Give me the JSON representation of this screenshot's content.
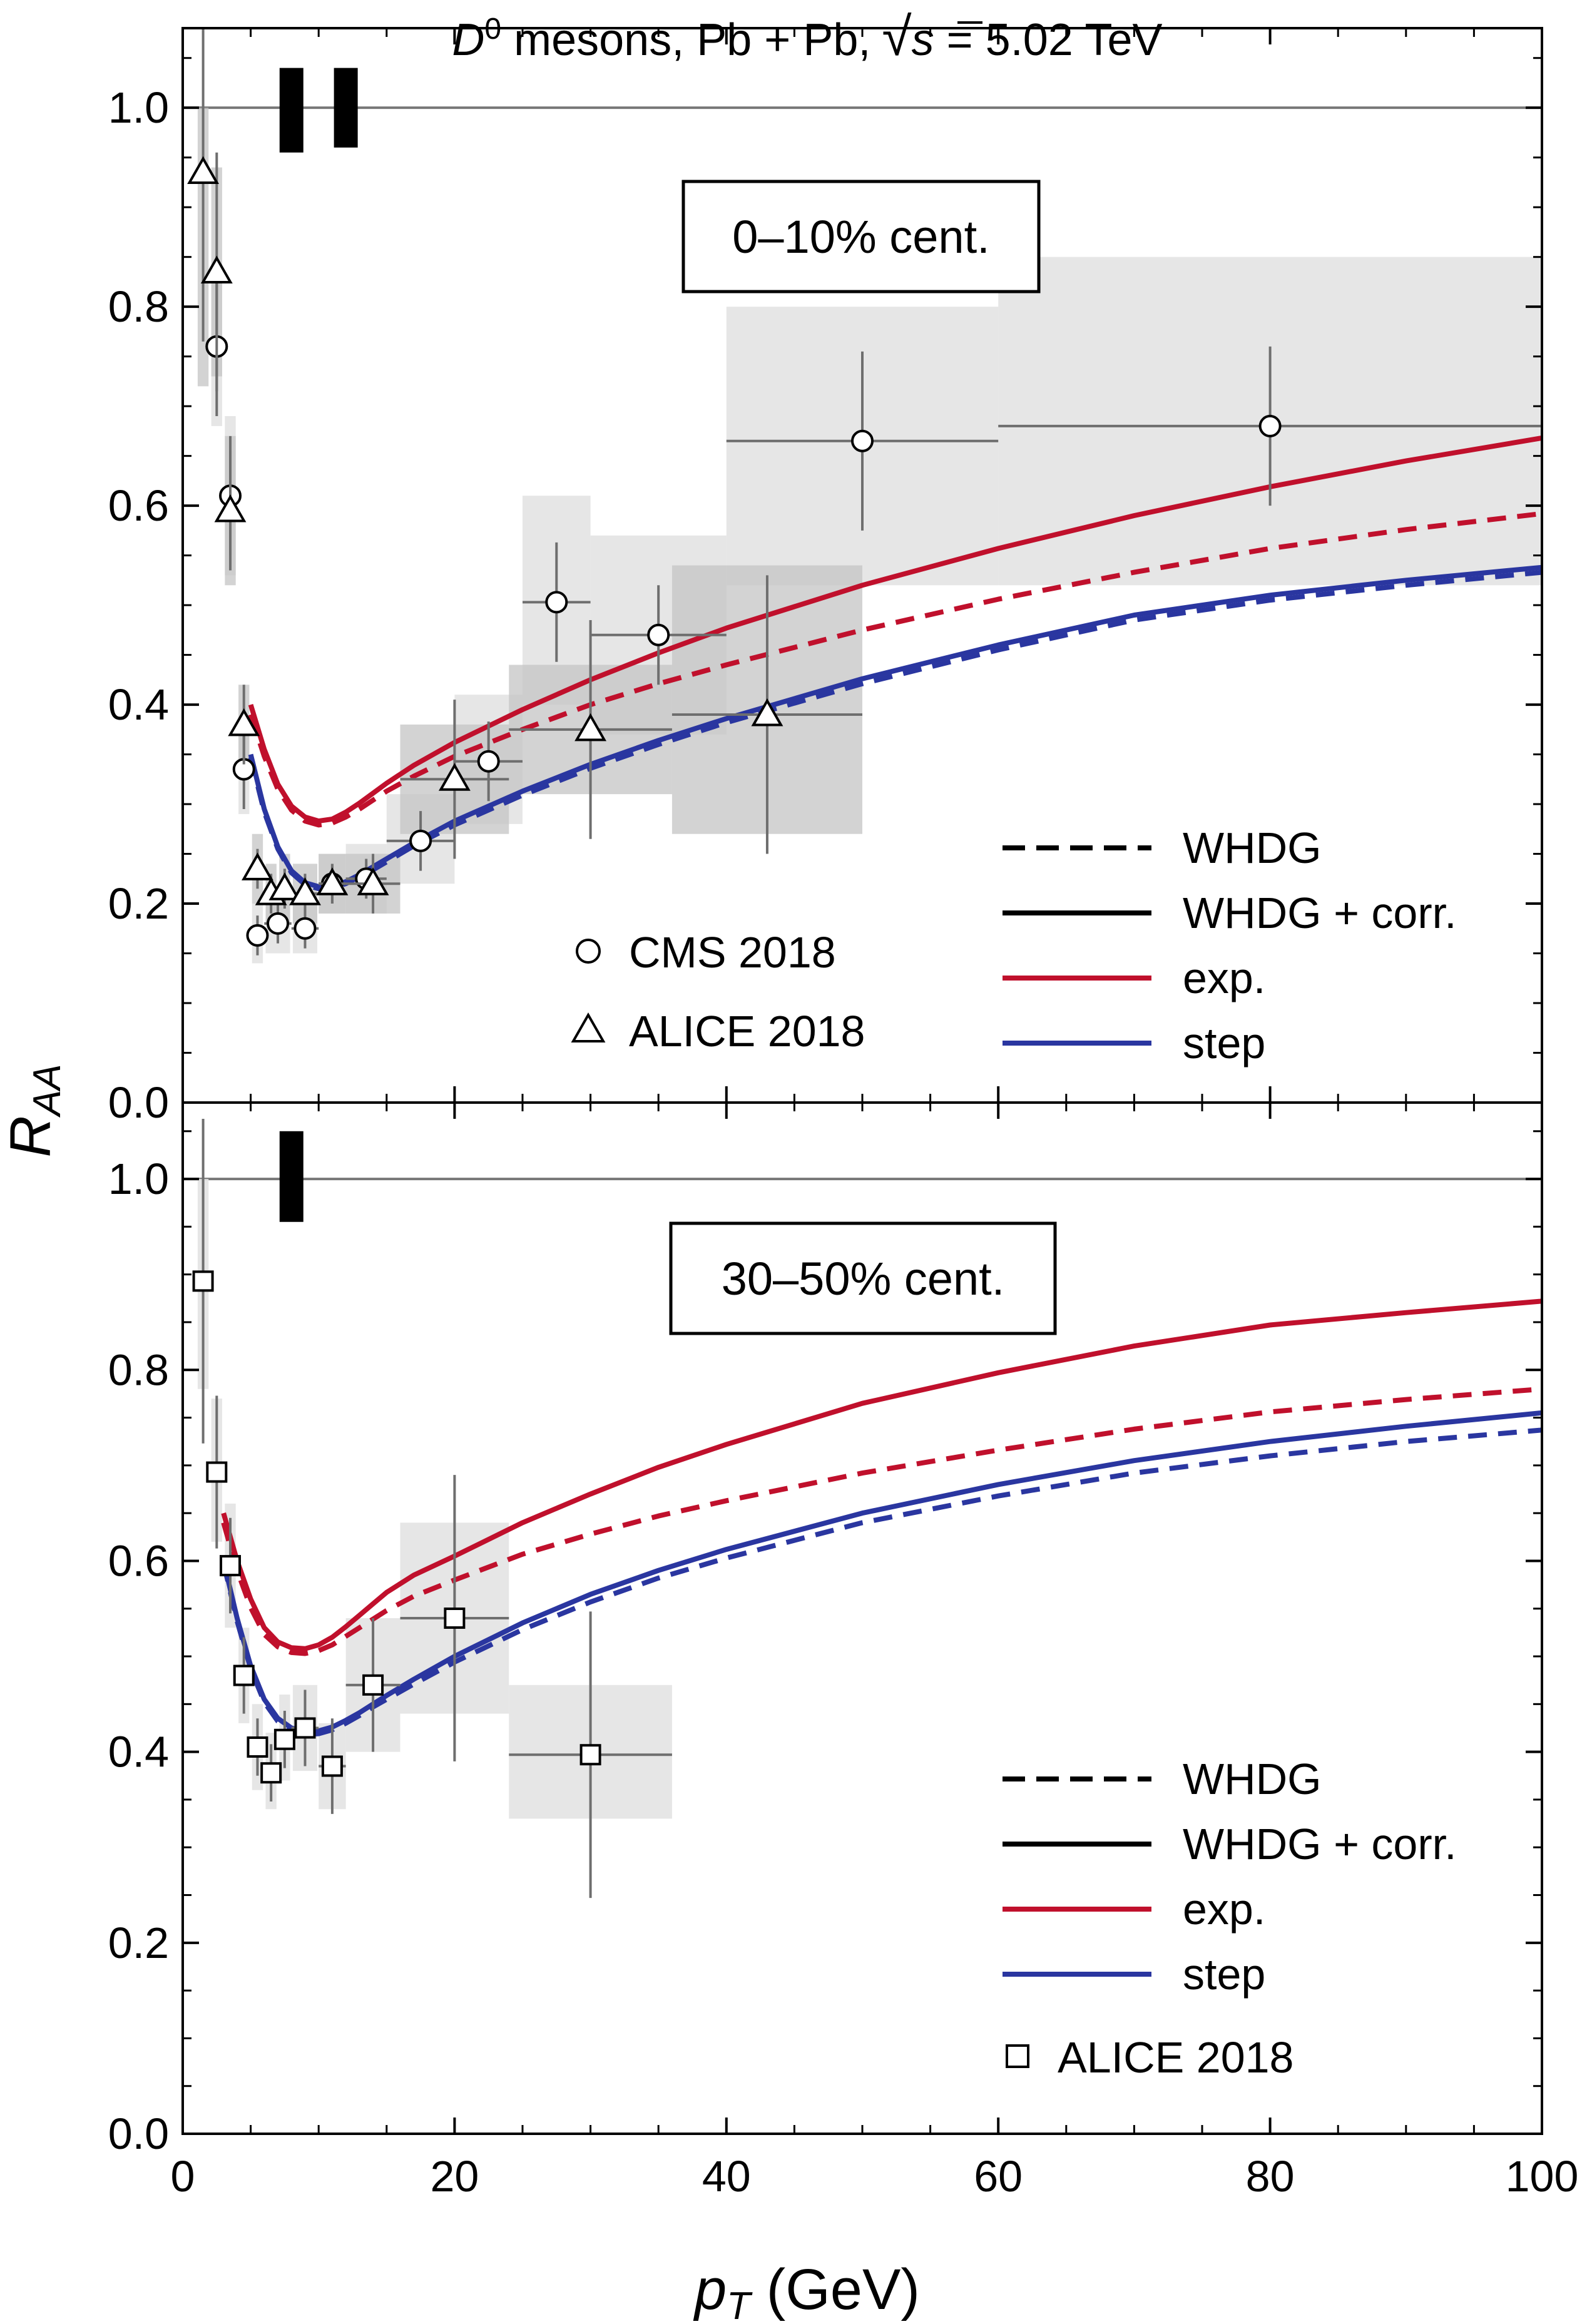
{
  "figure_title": {
    "particle": "D",
    "particle_sup": "0",
    "rest": " mesons, Pb + Pb,",
    "sqrt_symbol": "√",
    "s_var": "s",
    "energy": " = 5.02 TeV"
  },
  "x_axis_label": {
    "var": "p",
    "sub": "T",
    "unit": " (GeV)"
  },
  "y_axis_label": {
    "var": "R",
    "sub": "AA"
  },
  "colors": {
    "exp": "#c0102c",
    "step": "#2a36a0",
    "errbar": "#6e6e6e",
    "band_light": "#e3e3e3",
    "band_dark": "#c4c4c4"
  },
  "chart_data": [
    {
      "type": "line",
      "panel": "top",
      "centrality_label": "0–10% cent.",
      "xlim": [
        0,
        100
      ],
      "ylim": [
        0,
        1.08
      ],
      "x_ticks": [
        0,
        20,
        40,
        60,
        80,
        100
      ],
      "x_tick_labels": [
        "",
        "",
        "",
        "",
        "",
        ""
      ],
      "y_ticks": [
        0.0,
        0.2,
        0.4,
        0.6,
        0.8,
        1.0
      ],
      "y_tick_labels": [
        "0.0",
        "0.2",
        "0.4",
        "0.6",
        "0.8",
        "1.0"
      ],
      "reference_line": 1.0,
      "normalization_uncertainty": [
        {
          "x": 8,
          "ylow": 0.955,
          "yhigh": 1.04
        },
        {
          "x": 12,
          "ylow": 0.96,
          "yhigh": 1.04
        }
      ],
      "legend": {
        "line_styles": [
          {
            "label": "WHDG",
            "style": "dashed"
          },
          {
            "label": "WHDG + corr.",
            "style": "solid"
          },
          {
            "label": "exp.",
            "style": "solid",
            "color": "exp"
          },
          {
            "label": "step",
            "style": "solid",
            "color": "step"
          }
        ],
        "markers": [
          {
            "label": "CMS 2018",
            "marker": "circle"
          },
          {
            "label": "ALICE 2018",
            "marker": "triangle"
          }
        ]
      },
      "series": [
        {
          "name": "exp. (WHDG + corr.)",
          "color": "exp",
          "style": "solid",
          "x": [
            5,
            6,
            7,
            8,
            9,
            10,
            11,
            12,
            13,
            14,
            15,
            17,
            20,
            25,
            30,
            35,
            40,
            50,
            60,
            70,
            80,
            90,
            100
          ],
          "y": [
            0.4,
            0.355,
            0.32,
            0.298,
            0.287,
            0.283,
            0.285,
            0.292,
            0.301,
            0.311,
            0.321,
            0.339,
            0.362,
            0.395,
            0.425,
            0.452,
            0.477,
            0.52,
            0.557,
            0.59,
            0.619,
            0.645,
            0.668
          ]
        },
        {
          "name": "exp. (WHDG)",
          "color": "exp",
          "style": "dashed",
          "x": [
            5,
            6,
            7,
            8,
            9,
            10,
            11,
            12,
            13,
            14,
            15,
            17,
            20,
            25,
            30,
            35,
            40,
            50,
            60,
            70,
            80,
            90,
            100
          ],
          "y": [
            0.39,
            0.348,
            0.315,
            0.294,
            0.283,
            0.279,
            0.281,
            0.287,
            0.295,
            0.304,
            0.313,
            0.328,
            0.348,
            0.375,
            0.4,
            0.421,
            0.44,
            0.475,
            0.506,
            0.533,
            0.557,
            0.576,
            0.592
          ]
        },
        {
          "name": "step (WHDG + corr.)",
          "color": "step",
          "style": "solid",
          "x": [
            5,
            6,
            7,
            8,
            9,
            10,
            11,
            12,
            13,
            14,
            15,
            17,
            20,
            25,
            30,
            35,
            40,
            50,
            60,
            70,
            80,
            90,
            100
          ],
          "y": [
            0.35,
            0.295,
            0.257,
            0.233,
            0.221,
            0.217,
            0.218,
            0.222,
            0.229,
            0.237,
            0.245,
            0.261,
            0.283,
            0.313,
            0.34,
            0.364,
            0.386,
            0.426,
            0.46,
            0.49,
            0.51,
            0.525,
            0.538
          ]
        },
        {
          "name": "step (WHDG)",
          "color": "step",
          "style": "dashed",
          "x": [
            5,
            6,
            7,
            8,
            9,
            10,
            11,
            12,
            13,
            14,
            15,
            17,
            20,
            25,
            30,
            35,
            40,
            50,
            60,
            70,
            80,
            90,
            100
          ],
          "y": [
            0.347,
            0.292,
            0.255,
            0.231,
            0.219,
            0.215,
            0.216,
            0.22,
            0.227,
            0.234,
            0.242,
            0.258,
            0.279,
            0.309,
            0.336,
            0.36,
            0.382,
            0.421,
            0.455,
            0.485,
            0.505,
            0.52,
            0.533
          ]
        },
        {
          "name": "CMS 2018",
          "marker": "circle",
          "x": [
            2.5,
            3.5,
            4.5,
            5.5,
            7,
            9,
            11,
            13.5,
            17.5,
            22.5,
            27.5,
            35,
            50,
            80
          ],
          "y": [
            0.76,
            0.61,
            0.335,
            0.168,
            0.18,
            0.175,
            0.22,
            0.225,
            0.263,
            0.343,
            0.503,
            0.47,
            0.665,
            0.68
          ],
          "x_err": [
            0.5,
            0.5,
            0.5,
            0.5,
            1,
            1,
            1,
            1.5,
            2.5,
            2.5,
            2.5,
            5,
            10,
            20
          ],
          "y_err": [
            0.07,
            0.06,
            0.04,
            0.02,
            0.02,
            0.02,
            0.02,
            0.02,
            0.03,
            0.04,
            0.06,
            0.05,
            0.09,
            0.08
          ],
          "sys_low": [
            0.68,
            0.53,
            0.29,
            0.14,
            0.15,
            0.15,
            0.19,
            0.19,
            0.22,
            0.28,
            0.4,
            0.37,
            0.52,
            0.52
          ],
          "sys_high": [
            0.84,
            0.69,
            0.38,
            0.2,
            0.21,
            0.2,
            0.25,
            0.26,
            0.31,
            0.41,
            0.61,
            0.57,
            0.8,
            0.85
          ]
        },
        {
          "name": "ALICE 2018",
          "marker": "triangle",
          "x": [
            1.5,
            2.5,
            3.5,
            4.5,
            5.5,
            6.5,
            7.5,
            9,
            11,
            14,
            20,
            30,
            43
          ],
          "y": [
            0.935,
            0.835,
            0.595,
            0.38,
            0.235,
            0.21,
            0.215,
            0.21,
            0.22,
            0.22,
            0.325,
            0.375,
            0.39
          ],
          "x_err": [
            0.5,
            0.5,
            0.5,
            0.5,
            0.5,
            0.5,
            0.5,
            1,
            1,
            2,
            4,
            6,
            7
          ],
          "y_err": [
            0.17,
            0.12,
            0.06,
            0.04,
            0.02,
            0.02,
            0.02,
            0.02,
            0.02,
            0.03,
            0.08,
            0.11,
            0.14
          ],
          "sys_low": [
            0.72,
            0.73,
            0.52,
            0.34,
            0.2,
            0.18,
            0.18,
            0.18,
            0.19,
            0.19,
            0.27,
            0.31,
            0.27
          ],
          "sys_high": [
            1.0,
            0.94,
            0.67,
            0.42,
            0.27,
            0.24,
            0.25,
            0.24,
            0.25,
            0.25,
            0.38,
            0.44,
            0.54
          ]
        }
      ]
    },
    {
      "type": "line",
      "panel": "bottom",
      "centrality_label": "30–50% cent.",
      "xlim": [
        0,
        100
      ],
      "ylim": [
        0,
        1.08
      ],
      "x_ticks": [
        0,
        20,
        40,
        60,
        80,
        100
      ],
      "x_tick_labels": [
        "0",
        "20",
        "40",
        "60",
        "80",
        "100"
      ],
      "y_ticks": [
        0.0,
        0.2,
        0.4,
        0.6,
        0.8,
        1.0
      ],
      "y_tick_labels": [
        "0.0",
        "0.2",
        "0.4",
        "0.6",
        "0.8",
        "1.0"
      ],
      "reference_line": 1.0,
      "normalization_uncertainty": [
        {
          "x": 8,
          "ylow": 0.955,
          "yhigh": 1.05
        }
      ],
      "legend": {
        "line_styles": [
          {
            "label": "WHDG",
            "style": "dashed"
          },
          {
            "label": "WHDG + corr.",
            "style": "solid"
          },
          {
            "label": "exp.",
            "style": "solid",
            "color": "exp"
          },
          {
            "label": "step",
            "style": "solid",
            "color": "step"
          }
        ],
        "markers": [
          {
            "label": "ALICE 2018",
            "marker": "square"
          }
        ]
      },
      "series": [
        {
          "name": "exp. (WHDG + corr.)",
          "color": "exp",
          "style": "solid",
          "x": [
            3,
            4,
            5,
            6,
            7,
            8,
            9,
            10,
            11,
            12,
            13,
            14,
            15,
            17,
            20,
            25,
            30,
            35,
            40,
            50,
            60,
            70,
            80,
            90,
            100
          ],
          "y": [
            0.65,
            0.6,
            0.56,
            0.53,
            0.515,
            0.509,
            0.508,
            0.512,
            0.52,
            0.531,
            0.543,
            0.555,
            0.567,
            0.585,
            0.605,
            0.64,
            0.67,
            0.698,
            0.722,
            0.765,
            0.797,
            0.825,
            0.847,
            0.86,
            0.872
          ]
        },
        {
          "name": "exp. (WHDG)",
          "color": "exp",
          "style": "dashed",
          "x": [
            3,
            4,
            5,
            6,
            7,
            8,
            9,
            10,
            11,
            12,
            13,
            14,
            15,
            17,
            20,
            25,
            30,
            35,
            40,
            50,
            60,
            70,
            80,
            90,
            100
          ],
          "y": [
            0.64,
            0.59,
            0.551,
            0.523,
            0.51,
            0.504,
            0.503,
            0.506,
            0.512,
            0.521,
            0.53,
            0.539,
            0.548,
            0.563,
            0.58,
            0.607,
            0.628,
            0.647,
            0.663,
            0.692,
            0.716,
            0.738,
            0.756,
            0.769,
            0.78
          ]
        },
        {
          "name": "step (WHDG + corr.)",
          "color": "step",
          "style": "solid",
          "x": [
            3,
            4,
            5,
            6,
            7,
            8,
            9,
            10,
            11,
            12,
            13,
            14,
            15,
            17,
            20,
            25,
            30,
            35,
            40,
            50,
            60,
            70,
            80,
            90,
            100
          ],
          "y": [
            0.6,
            0.54,
            0.49,
            0.455,
            0.435,
            0.425,
            0.421,
            0.422,
            0.426,
            0.433,
            0.441,
            0.45,
            0.459,
            0.476,
            0.5,
            0.535,
            0.565,
            0.59,
            0.612,
            0.65,
            0.68,
            0.705,
            0.725,
            0.741,
            0.755
          ]
        },
        {
          "name": "step (WHDG)",
          "color": "step",
          "style": "dashed",
          "x": [
            3,
            4,
            5,
            6,
            7,
            8,
            9,
            10,
            11,
            12,
            13,
            14,
            15,
            17,
            20,
            25,
            30,
            35,
            40,
            50,
            60,
            70,
            80,
            90,
            100
          ],
          "y": [
            0.598,
            0.537,
            0.487,
            0.452,
            0.432,
            0.422,
            0.418,
            0.419,
            0.423,
            0.43,
            0.438,
            0.447,
            0.455,
            0.471,
            0.494,
            0.528,
            0.557,
            0.582,
            0.603,
            0.64,
            0.668,
            0.692,
            0.71,
            0.725,
            0.737
          ]
        },
        {
          "name": "ALICE 2018",
          "marker": "square",
          "x": [
            1.5,
            2.5,
            3.5,
            4.5,
            5.5,
            6.5,
            7.5,
            9,
            11,
            14,
            20,
            30
          ],
          "y": [
            0.893,
            0.693,
            0.595,
            0.48,
            0.405,
            0.378,
            0.413,
            0.425,
            0.385,
            0.47,
            0.54,
            0.397
          ],
          "x_err": [
            0.5,
            0.5,
            0.5,
            0.5,
            0.5,
            0.5,
            0.5,
            1,
            1,
            2,
            4,
            6
          ],
          "y_err": [
            0.17,
            0.08,
            0.05,
            0.04,
            0.03,
            0.03,
            0.03,
            0.04,
            0.05,
            0.07,
            0.15,
            0.15
          ],
          "sys_low": [
            0.78,
            0.62,
            0.53,
            0.43,
            0.36,
            0.34,
            0.37,
            0.38,
            0.34,
            0.4,
            0.44,
            0.33
          ],
          "sys_high": [
            1.0,
            0.77,
            0.66,
            0.53,
            0.45,
            0.42,
            0.46,
            0.47,
            0.43,
            0.54,
            0.64,
            0.47
          ]
        }
      ]
    }
  ]
}
